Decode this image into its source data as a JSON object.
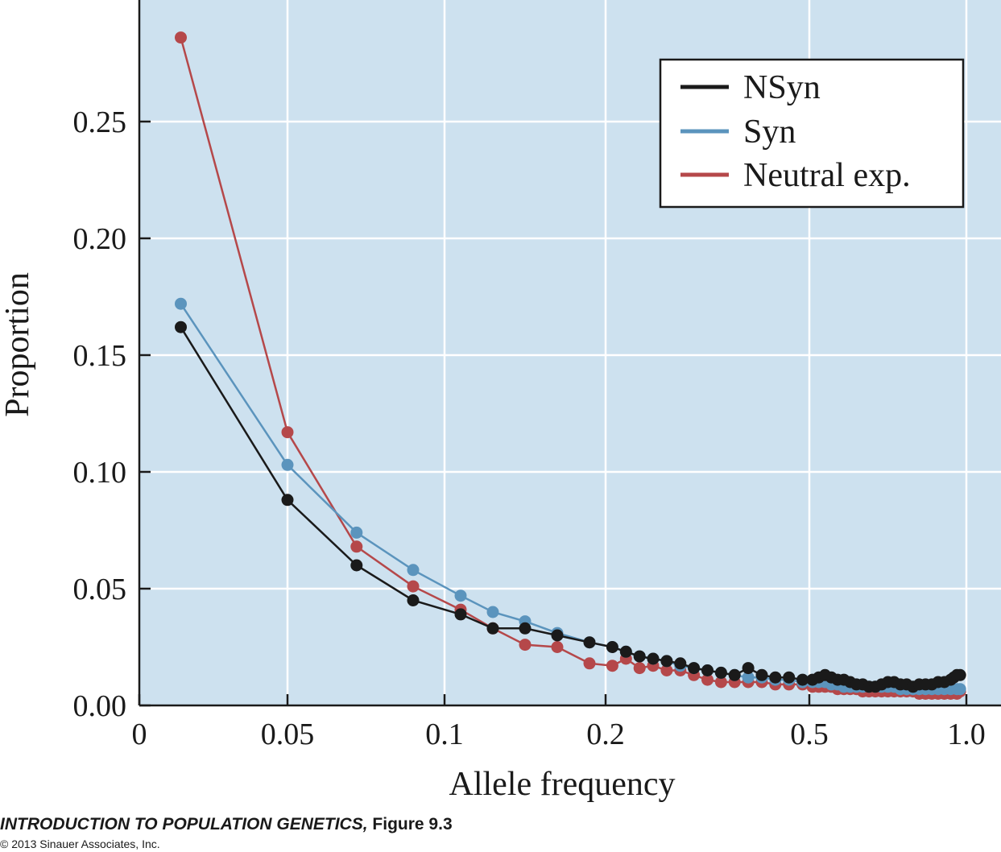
{
  "chart_data": {
    "type": "line",
    "xlabel": "Allele frequency",
    "ylabel": "Proportion",
    "x_scale": "nonlinear (tick spacing compressed at high frequencies)",
    "x_ticks": [
      "0",
      "0.05",
      "0.1",
      "0.2",
      "0.5",
      "1.0"
    ],
    "y_ticks": [
      "0.00",
      "0.05",
      "0.10",
      "0.15",
      "0.20",
      "0.25"
    ],
    "ylim": [
      0,
      0.3
    ],
    "grid": true,
    "legend_position": "top-right",
    "background_color": "#cde1ef",
    "series": [
      {
        "name": "NSyn",
        "color": "#1a1a1a",
        "x": [
          0.014,
          0.05,
          0.072,
          0.09,
          0.11,
          0.13,
          0.15,
          0.17,
          0.19,
          0.21,
          0.23,
          0.25,
          0.27,
          0.29,
          0.31,
          0.33,
          0.35,
          0.37,
          0.39,
          0.41,
          0.43,
          0.45,
          0.47,
          0.49,
          0.51,
          0.53,
          0.55,
          0.57,
          0.59,
          0.61,
          0.63,
          0.65,
          0.67,
          0.69,
          0.71,
          0.73,
          0.75,
          0.77,
          0.79,
          0.81,
          0.83,
          0.85,
          0.87,
          0.89,
          0.91,
          0.93,
          0.95,
          0.96,
          0.97,
          0.98
        ],
        "y": [
          0.162,
          0.088,
          0.06,
          0.045,
          0.039,
          0.033,
          0.033,
          0.03,
          0.027,
          0.025,
          0.023,
          0.021,
          0.02,
          0.019,
          0.018,
          0.016,
          0.015,
          0.014,
          0.013,
          0.016,
          0.013,
          0.012,
          0.012,
          0.011,
          0.011,
          0.012,
          0.013,
          0.012,
          0.011,
          0.011,
          0.01,
          0.009,
          0.009,
          0.008,
          0.008,
          0.009,
          0.01,
          0.01,
          0.009,
          0.009,
          0.008,
          0.009,
          0.009,
          0.009,
          0.01,
          0.01,
          0.011,
          0.012,
          0.013,
          0.013
        ]
      },
      {
        "name": "Syn",
        "color": "#5b94bd",
        "x": [
          0.014,
          0.05,
          0.072,
          0.09,
          0.11,
          0.13,
          0.15,
          0.17,
          0.19,
          0.21,
          0.23,
          0.25,
          0.27,
          0.29,
          0.31,
          0.33,
          0.35,
          0.37,
          0.39,
          0.41,
          0.43,
          0.45,
          0.47,
          0.49,
          0.51,
          0.53,
          0.55,
          0.57,
          0.59,
          0.61,
          0.63,
          0.65,
          0.67,
          0.69,
          0.71,
          0.73,
          0.75,
          0.77,
          0.79,
          0.81,
          0.83,
          0.85,
          0.87,
          0.89,
          0.91,
          0.93,
          0.95,
          0.97,
          0.98
        ],
        "y": [
          0.172,
          0.103,
          0.074,
          0.058,
          0.047,
          0.04,
          0.036,
          0.031,
          0.027,
          0.025,
          0.023,
          0.021,
          0.02,
          0.019,
          0.017,
          0.016,
          0.015,
          0.014,
          0.013,
          0.012,
          0.012,
          0.011,
          0.011,
          0.01,
          0.01,
          0.01,
          0.01,
          0.009,
          0.009,
          0.008,
          0.008,
          0.008,
          0.008,
          0.008,
          0.008,
          0.008,
          0.008,
          0.008,
          0.007,
          0.007,
          0.007,
          0.007,
          0.007,
          0.007,
          0.007,
          0.007,
          0.007,
          0.007,
          0.007
        ]
      },
      {
        "name": "Neutral exp.",
        "color": "#b5484a",
        "x": [
          0.014,
          0.05,
          0.072,
          0.09,
          0.11,
          0.13,
          0.15,
          0.17,
          0.19,
          0.21,
          0.23,
          0.25,
          0.27,
          0.29,
          0.31,
          0.33,
          0.35,
          0.37,
          0.39,
          0.41,
          0.43,
          0.45,
          0.47,
          0.49,
          0.51,
          0.53,
          0.55,
          0.57,
          0.59,
          0.61,
          0.63,
          0.65,
          0.67,
          0.69,
          0.71,
          0.73,
          0.75,
          0.77,
          0.79,
          0.81,
          0.83,
          0.85,
          0.87,
          0.89,
          0.91,
          0.93,
          0.95,
          0.97,
          0.98
        ],
        "y": [
          0.286,
          0.117,
          0.068,
          0.051,
          0.041,
          0.033,
          0.026,
          0.025,
          0.018,
          0.017,
          0.02,
          0.016,
          0.017,
          0.015,
          0.015,
          0.013,
          0.011,
          0.01,
          0.01,
          0.01,
          0.01,
          0.009,
          0.009,
          0.009,
          0.008,
          0.008,
          0.008,
          0.008,
          0.007,
          0.007,
          0.007,
          0.007,
          0.006,
          0.006,
          0.006,
          0.006,
          0.006,
          0.006,
          0.006,
          0.006,
          0.006,
          0.005,
          0.005,
          0.005,
          0.005,
          0.005,
          0.005,
          0.005,
          0.006
        ]
      }
    ]
  },
  "footer": {
    "book_title": "INTRODUCTION TO POPULATION GENETICS,",
    "figure_label": "Figure 9.3",
    "copyright": "© 2013 Sinauer Associates, Inc."
  }
}
